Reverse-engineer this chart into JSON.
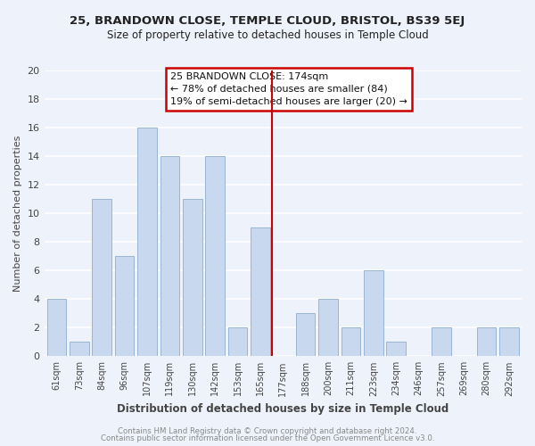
{
  "title1": "25, BRANDOWN CLOSE, TEMPLE CLOUD, BRISTOL, BS39 5EJ",
  "title2": "Size of property relative to detached houses in Temple Cloud",
  "xlabel": "Distribution of detached houses by size in Temple Cloud",
  "ylabel": "Number of detached properties",
  "footer1": "Contains HM Land Registry data © Crown copyright and database right 2024.",
  "footer2": "Contains public sector information licensed under the Open Government Licence v3.0.",
  "bar_labels": [
    "61sqm",
    "73sqm",
    "84sqm",
    "96sqm",
    "107sqm",
    "119sqm",
    "130sqm",
    "142sqm",
    "153sqm",
    "165sqm",
    "177sqm",
    "188sqm",
    "200sqm",
    "211sqm",
    "223sqm",
    "234sqm",
    "246sqm",
    "257sqm",
    "269sqm",
    "280sqm",
    "292sqm"
  ],
  "bar_values": [
    4,
    1,
    11,
    7,
    16,
    14,
    11,
    14,
    2,
    9,
    0,
    3,
    4,
    2,
    6,
    1,
    0,
    2,
    0,
    2,
    2
  ],
  "bar_color": "#c8d8ee",
  "bar_edge_color": "#9ab4d4",
  "reference_line_color": "#cc0000",
  "ylim": [
    0,
    20
  ],
  "yticks": [
    0,
    2,
    4,
    6,
    8,
    10,
    12,
    14,
    16,
    18,
    20
  ],
  "annotation_title": "25 BRANDOWN CLOSE: 174sqm",
  "annotation_line1": "← 78% of detached houses are smaller (84)",
  "annotation_line2": "19% of semi-detached houses are larger (20) →",
  "annotation_box_facecolor": "#ffffff",
  "annotation_box_edgecolor": "#cc0000",
  "background_color": "#eef2fa",
  "grid_color": "#ffffff",
  "title_color": "#222222",
  "text_color": "#444444",
  "footer_color": "#888888"
}
